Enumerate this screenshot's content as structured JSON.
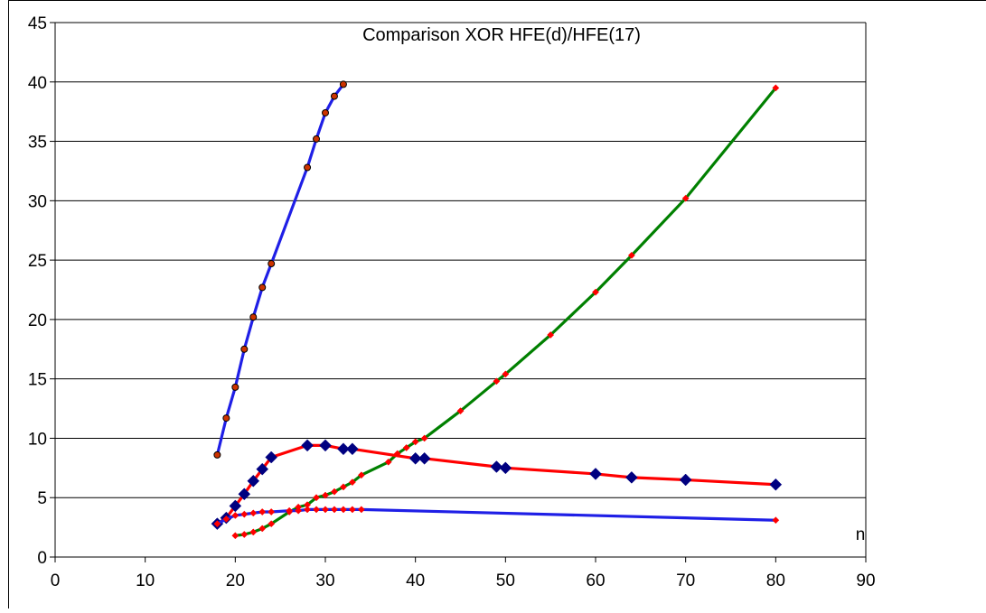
{
  "chart_data": {
    "type": "line",
    "title": "Comparison XOR HFE(d)/HFE(17)",
    "xlabel": "n",
    "ylabel": "",
    "xlim": [
      0,
      90
    ],
    "ylim": [
      0,
      45
    ],
    "x_ticks": [
      0,
      10,
      20,
      30,
      40,
      50,
      60,
      70,
      80,
      90
    ],
    "y_ticks": [
      0,
      5,
      10,
      15,
      20,
      25,
      30,
      35,
      40,
      45
    ],
    "grid": "horizontal",
    "legend": "none",
    "series": [
      {
        "color": "#1f1fe6",
        "marker": "circle",
        "marker_fill": "#cc3300",
        "points": [
          [
            18,
            8.6
          ],
          [
            19,
            11.7
          ],
          [
            20,
            14.3
          ],
          [
            21,
            17.5
          ],
          [
            22,
            20.2
          ],
          [
            23,
            22.7
          ],
          [
            24,
            24.7
          ],
          [
            28,
            32.8
          ],
          [
            29,
            35.2
          ],
          [
            30,
            37.4
          ],
          [
            31,
            38.8
          ],
          [
            32,
            39.8
          ]
        ]
      },
      {
        "color": "#008000",
        "marker": "diamond",
        "marker_fill": "#ff0000",
        "points": [
          [
            20,
            1.8
          ],
          [
            21,
            1.9
          ],
          [
            22,
            2.1
          ],
          [
            23,
            2.4
          ],
          [
            24,
            2.8
          ],
          [
            26,
            3.8
          ],
          [
            27,
            4.2
          ],
          [
            28,
            4.4
          ],
          [
            29,
            5.0
          ],
          [
            30,
            5.2
          ],
          [
            31,
            5.5
          ],
          [
            32,
            5.9
          ],
          [
            33,
            6.3
          ],
          [
            34,
            6.9
          ],
          [
            37,
            8.0
          ],
          [
            38,
            8.7
          ],
          [
            39,
            9.2
          ],
          [
            40,
            9.7
          ],
          [
            41,
            10.0
          ],
          [
            45,
            12.3
          ],
          [
            49,
            14.8
          ],
          [
            50,
            15.4
          ],
          [
            55,
            18.7
          ],
          [
            60,
            22.3
          ],
          [
            64,
            25.4
          ],
          [
            70,
            30.2
          ],
          [
            80,
            39.5
          ]
        ]
      },
      {
        "color": "#ff0000",
        "marker": "diamond",
        "marker_fill": "#000080",
        "points": [
          [
            18,
            2.8
          ],
          [
            19,
            3.3
          ],
          [
            20,
            4.3
          ],
          [
            21,
            5.3
          ],
          [
            22,
            6.4
          ],
          [
            23,
            7.4
          ],
          [
            24,
            8.4
          ],
          [
            28,
            9.4
          ],
          [
            30,
            9.4
          ],
          [
            32,
            9.1
          ],
          [
            33,
            9.1
          ],
          [
            40,
            8.3
          ],
          [
            41,
            8.3
          ],
          [
            49,
            7.6
          ],
          [
            50,
            7.5
          ],
          [
            60,
            7.0
          ],
          [
            64,
            6.7
          ],
          [
            70,
            6.5
          ],
          [
            80,
            6.1
          ]
        ]
      },
      {
        "color": "#1f1fe6",
        "marker": "diamond",
        "marker_fill": "#ff0000",
        "points": [
          [
            18,
            2.8
          ],
          [
            19,
            3.2
          ],
          [
            20,
            3.5
          ],
          [
            21,
            3.6
          ],
          [
            22,
            3.7
          ],
          [
            23,
            3.8
          ],
          [
            24,
            3.8
          ],
          [
            26,
            3.9
          ],
          [
            27,
            3.9
          ],
          [
            28,
            4.0
          ],
          [
            29,
            4.0
          ],
          [
            30,
            4.0
          ],
          [
            31,
            4.0
          ],
          [
            32,
            4.0
          ],
          [
            33,
            4.0
          ],
          [
            34,
            4.0
          ],
          [
            80,
            3.1
          ]
        ]
      }
    ]
  }
}
